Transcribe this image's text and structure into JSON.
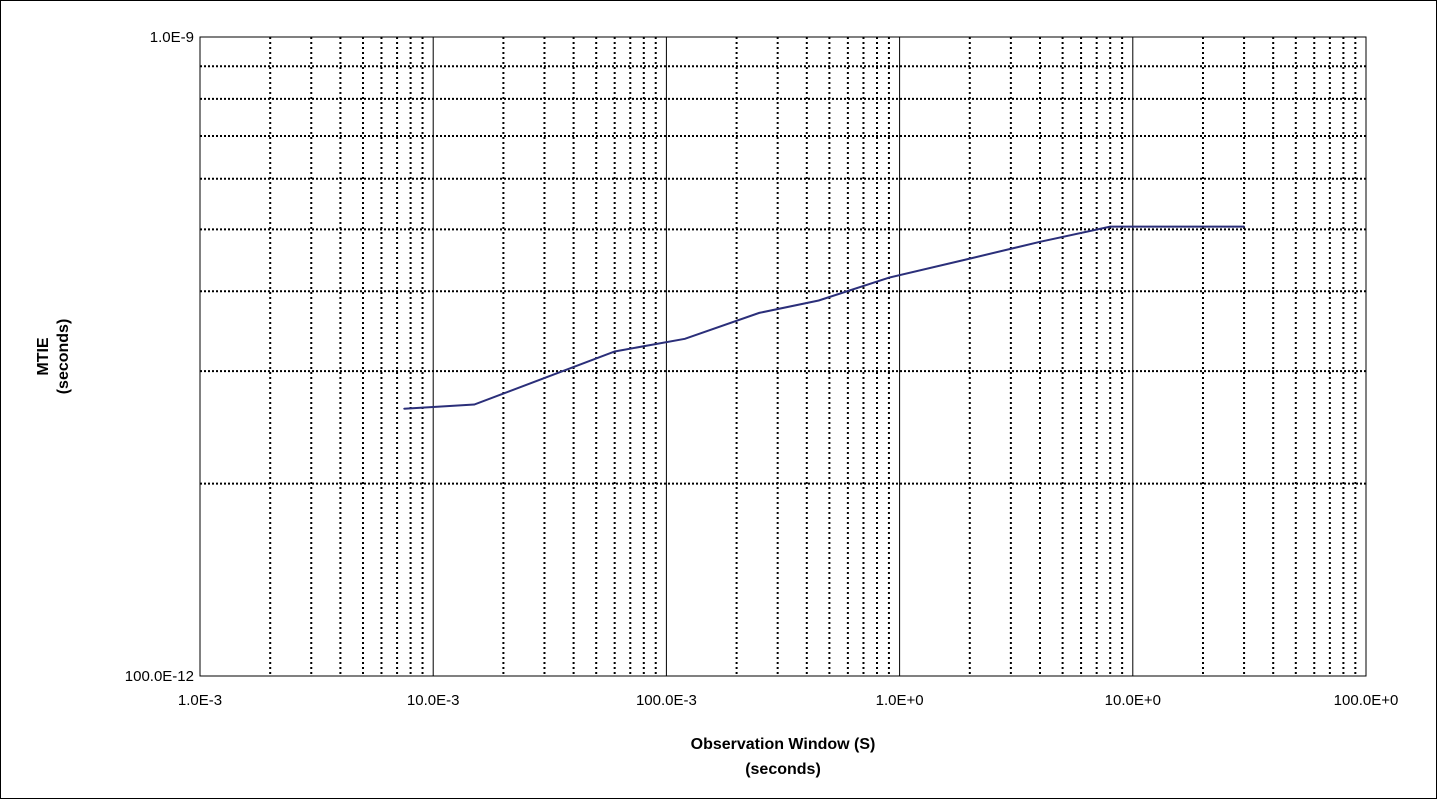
{
  "chart_data": {
    "type": "line",
    "xlabel": "Observation Window (S)",
    "xlabel_units": "(seconds)",
    "ylabel": "MTIE",
    "ylabel_units": "(seconds)",
    "x_scale": "log",
    "y_scale": "log",
    "xlim": [
      0.001,
      100
    ],
    "ylim": [
      1e-10,
      1e-09
    ],
    "x_tick_labels": [
      "1.0E-3",
      "10.0E-3",
      "100.0E-3",
      "1.0E+0",
      "10.0E+0",
      "100.0E+0"
    ],
    "y_tick_labels": [
      "100.0E-12",
      "1.0E-9"
    ],
    "grid": true,
    "line_color": "#2b2f7a",
    "series": [
      {
        "x": [
          0.0075,
          0.015,
          0.06,
          0.12,
          0.25,
          0.45,
          0.9,
          2,
          4,
          8,
          30
        ],
        "y": [
          2.62e-10,
          2.66e-10,
          3.22e-10,
          3.37e-10,
          3.7e-10,
          3.87e-10,
          4.2e-10,
          4.5e-10,
          4.78e-10,
          5.05e-10,
          5.05e-10
        ]
      }
    ]
  }
}
